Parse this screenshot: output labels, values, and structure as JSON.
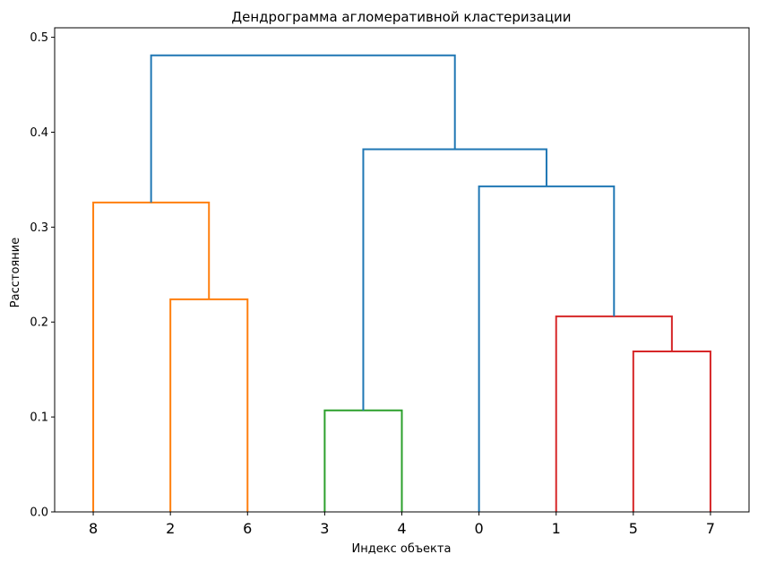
{
  "chart_data": {
    "type": "dendrogram",
    "title": "Дендрограмма агломеративной кластеризации",
    "xlabel": "Индекс объекта",
    "ylabel": "Расстояние",
    "ylim": [
      0,
      0.51
    ],
    "yticks": [
      0.0,
      0.1,
      0.2,
      0.3,
      0.4,
      0.5
    ],
    "ytick_labels": [
      "0.0",
      "0.1",
      "0.2",
      "0.3",
      "0.4",
      "0.5"
    ],
    "leaf_order": [
      "8",
      "2",
      "6",
      "3",
      "4",
      "0",
      "1",
      "5",
      "7"
    ],
    "links": [
      {
        "left": "leaf:5",
        "right": "leaf:7",
        "height": 0.169,
        "color": "#d62728"
      },
      {
        "left": "leaf:1",
        "right": "link:0",
        "height": 0.206,
        "color": "#d62728"
      },
      {
        "left": "leaf:2",
        "right": "leaf:6",
        "height": 0.224,
        "color": "#ff7f0e"
      },
      {
        "left": "leaf:3",
        "right": "leaf:4",
        "height": 0.107,
        "color": "#2ca02c"
      },
      {
        "left": "leaf:8",
        "right": "link:2",
        "height": 0.326,
        "color": "#ff7f0e"
      },
      {
        "left": "leaf:0",
        "right": "link:1",
        "height": 0.343,
        "color": "#1f77b4"
      },
      {
        "left": "link:3",
        "right": "link:5",
        "height": 0.382,
        "color": "#1f77b4"
      },
      {
        "left": "link:4",
        "right": "link:6",
        "height": 0.481,
        "color": "#1f77b4"
      }
    ]
  }
}
